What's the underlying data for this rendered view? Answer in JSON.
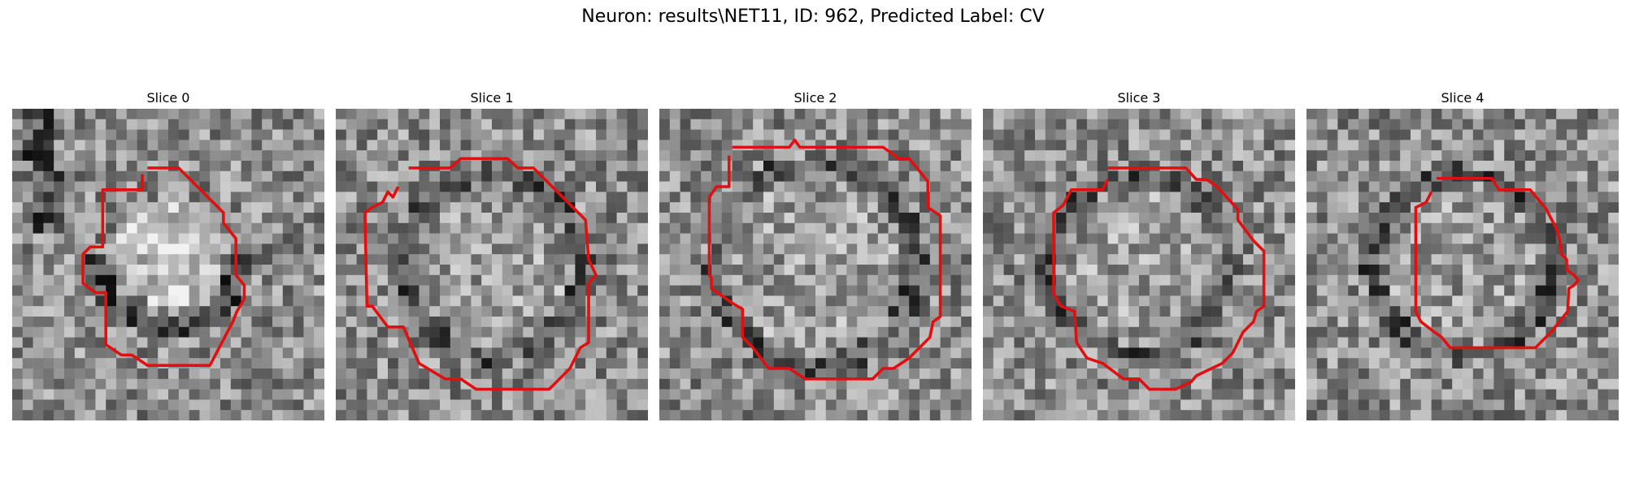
{
  "figure": {
    "title": "Neuron: results\\NET11, ID: 962, Predicted Label: CV",
    "contour_color": "#e01010",
    "colormap": "gray"
  },
  "slices": [
    {
      "title": "Slice 0"
    },
    {
      "title": "Slice 1"
    },
    {
      "title": "Slice 2"
    },
    {
      "title": "Slice 3"
    },
    {
      "title": "Slice 4"
    }
  ]
}
